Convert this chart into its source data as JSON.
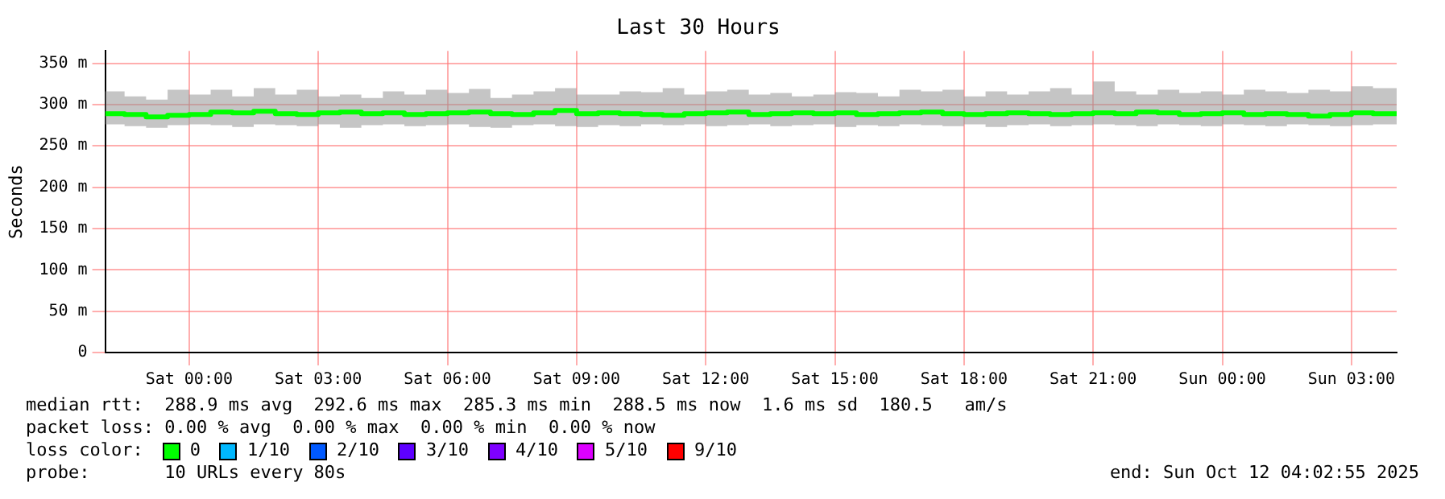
{
  "chart_data": {
    "type": "step",
    "title": "Last 30 Hours",
    "ylabel": "Seconds",
    "legend_title": "loss color:",
    "legend": "bottom",
    "grid": true,
    "xlim": [
      "2025-10-10T22:03",
      "2025-10-12T04:03"
    ],
    "xticks": [
      {
        "value": "2025-10-11T00:00",
        "label": "Sat 00:00"
      },
      {
        "value": "2025-10-11T03:00",
        "label": "Sat 03:00"
      },
      {
        "value": "2025-10-11T06:00",
        "label": "Sat 06:00"
      },
      {
        "value": "2025-10-11T09:00",
        "label": "Sat 09:00"
      },
      {
        "value": "2025-10-11T12:00",
        "label": "Sat 12:00"
      },
      {
        "value": "2025-10-11T15:00",
        "label": "Sat 15:00"
      },
      {
        "value": "2025-10-11T18:00",
        "label": "Sat 18:00"
      },
      {
        "value": "2025-10-11T21:00",
        "label": "Sat 21:00"
      },
      {
        "value": "2025-10-12T00:00",
        "label": "Sun 00:00"
      },
      {
        "value": "2025-10-12T03:00",
        "label": "Sun 03:00"
      }
    ],
    "ylim": [
      0,
      365
    ],
    "yticks": [
      0,
      {
        "value": 50,
        "label": "50 m"
      },
      {
        "value": 100,
        "label": "100 m"
      },
      {
        "value": 150,
        "label": "150 m"
      },
      {
        "value": 200,
        "label": "200 m"
      },
      {
        "value": 250,
        "label": "250 m"
      },
      {
        "value": 300,
        "label": "300 m"
      },
      {
        "value": 350,
        "label": "350 m"
      }
    ],
    "x": [
      "2025-10-10T22:03",
      "2025-10-10T22:30",
      "2025-10-10T23:00",
      "2025-10-10T23:30",
      "2025-10-11T00:00",
      "2025-10-11T00:30",
      "2025-10-11T01:00",
      "2025-10-11T01:30",
      "2025-10-11T02:00",
      "2025-10-11T02:30",
      "2025-10-11T03:00",
      "2025-10-11T03:30",
      "2025-10-11T04:00",
      "2025-10-11T04:30",
      "2025-10-11T05:00",
      "2025-10-11T05:30",
      "2025-10-11T06:00",
      "2025-10-11T06:30",
      "2025-10-11T07:00",
      "2025-10-11T07:30",
      "2025-10-11T08:00",
      "2025-10-11T08:30",
      "2025-10-11T09:00",
      "2025-10-11T09:30",
      "2025-10-11T10:00",
      "2025-10-11T10:30",
      "2025-10-11T11:00",
      "2025-10-11T11:30",
      "2025-10-11T12:00",
      "2025-10-11T12:30",
      "2025-10-11T13:00",
      "2025-10-11T13:30",
      "2025-10-11T14:00",
      "2025-10-11T14:30",
      "2025-10-11T15:00",
      "2025-10-11T15:30",
      "2025-10-11T16:00",
      "2025-10-11T16:30",
      "2025-10-11T17:00",
      "2025-10-11T17:30",
      "2025-10-11T18:00",
      "2025-10-11T18:30",
      "2025-10-11T19:00",
      "2025-10-11T19:30",
      "2025-10-11T20:00",
      "2025-10-11T20:30",
      "2025-10-11T21:00",
      "2025-10-11T21:30",
      "2025-10-11T22:00",
      "2025-10-11T22:30",
      "2025-10-11T23:00",
      "2025-10-11T23:30",
      "2025-10-12T00:00",
      "2025-10-12T00:30",
      "2025-10-12T01:00",
      "2025-10-12T01:30",
      "2025-10-12T02:00",
      "2025-10-12T02:30",
      "2025-10-12T03:00",
      "2025-10-12T03:30",
      "2025-10-12T04:03"
    ],
    "series": [
      {
        "name": "0",
        "color": "#00ff00",
        "values": [
          289,
          288,
          285,
          287,
          288,
          291,
          290,
          292,
          289,
          288,
          290,
          291,
          289,
          290,
          288,
          289,
          290,
          291,
          289,
          288,
          290,
          293,
          289,
          290,
          289,
          288,
          287,
          289,
          290,
          291,
          288,
          289,
          290,
          289,
          290,
          288,
          289,
          290,
          291,
          289,
          288,
          289,
          290,
          289,
          288,
          289,
          290,
          289,
          291,
          290,
          288,
          289,
          290,
          288,
          289,
          288,
          286,
          288,
          290,
          289,
          289
        ],
        "lower": [
          276,
          274,
          272,
          275,
          276,
          275,
          273,
          276,
          275,
          274,
          276,
          272,
          275,
          276,
          274,
          275,
          276,
          273,
          272,
          275,
          276,
          274,
          273,
          275,
          274,
          276,
          275,
          276,
          274,
          275,
          276,
          274,
          275,
          276,
          273,
          275,
          274,
          276,
          275,
          274,
          276,
          273,
          275,
          276,
          274,
          275,
          276,
          275,
          274,
          276,
          275,
          274,
          276,
          275,
          274,
          276,
          275,
          274,
          275,
          276,
          276
        ],
        "upper": [
          316,
          310,
          306,
          318,
          312,
          318,
          310,
          320,
          312,
          318,
          310,
          312,
          308,
          316,
          312,
          318,
          314,
          319,
          308,
          312,
          316,
          320,
          312,
          312,
          316,
          315,
          320,
          312,
          316,
          318,
          312,
          314,
          310,
          312,
          315,
          314,
          310,
          318,
          316,
          318,
          310,
          316,
          312,
          316,
          320,
          312,
          328,
          316,
          312,
          318,
          314,
          316,
          312,
          318,
          316,
          314,
          318,
          316,
          322,
          320,
          320
        ]
      },
      {
        "name": "1/10",
        "color": "#00b8ff",
        "values": [
          null,
          null,
          null,
          null,
          null,
          null,
          null,
          null,
          null,
          null,
          null,
          null,
          null,
          null,
          null,
          null,
          null,
          null,
          null,
          null,
          null,
          null,
          null,
          null,
          null,
          null,
          null,
          null,
          null,
          null,
          null,
          null,
          null,
          null,
          null,
          null,
          null,
          null,
          null,
          null,
          null,
          null,
          null,
          null,
          null,
          null,
          null,
          null,
          null,
          null,
          null,
          null,
          null,
          null,
          null,
          null,
          null,
          null,
          null,
          null,
          null
        ]
      },
      {
        "name": "2/10",
        "color": "#0059ff",
        "values": [
          null,
          null,
          null,
          null,
          null,
          null,
          null,
          null,
          null,
          null,
          null,
          null,
          null,
          null,
          null,
          null,
          null,
          null,
          null,
          null,
          null,
          null,
          null,
          null,
          null,
          null,
          null,
          null,
          null,
          null,
          null,
          null,
          null,
          null,
          null,
          null,
          null,
          null,
          null,
          null,
          null,
          null,
          null,
          null,
          null,
          null,
          null,
          null,
          null,
          null,
          null,
          null,
          null,
          null,
          null,
          null,
          null,
          null,
          null,
          null,
          null
        ]
      },
      {
        "name": "3/10",
        "color": "#5e00ff",
        "values": [
          null,
          null,
          null,
          null,
          null,
          null,
          null,
          null,
          null,
          null,
          null,
          null,
          null,
          null,
          null,
          null,
          null,
          null,
          null,
          null,
          null,
          null,
          null,
          null,
          null,
          null,
          null,
          null,
          null,
          null,
          null,
          null,
          null,
          null,
          null,
          null,
          null,
          null,
          null,
          null,
          null,
          null,
          null,
          null,
          null,
          null,
          null,
          null,
          null,
          null,
          null,
          null,
          null,
          null,
          null,
          null,
          null,
          null,
          null,
          null,
          null
        ]
      },
      {
        "name": "4/10",
        "color": "#7e00ff",
        "values": [
          null,
          null,
          null,
          null,
          null,
          null,
          null,
          null,
          null,
          null,
          null,
          null,
          null,
          null,
          null,
          null,
          null,
          null,
          null,
          null,
          null,
          null,
          null,
          null,
          null,
          null,
          null,
          null,
          null,
          null,
          null,
          null,
          null,
          null,
          null,
          null,
          null,
          null,
          null,
          null,
          null,
          null,
          null,
          null,
          null,
          null,
          null,
          null,
          null,
          null,
          null,
          null,
          null,
          null,
          null,
          null,
          null,
          null,
          null,
          null,
          null
        ]
      },
      {
        "name": "5/10",
        "color": "#dd00ff",
        "values": [
          null,
          null,
          null,
          null,
          null,
          null,
          null,
          null,
          null,
          null,
          null,
          null,
          null,
          null,
          null,
          null,
          null,
          null,
          null,
          null,
          null,
          null,
          null,
          null,
          null,
          null,
          null,
          null,
          null,
          null,
          null,
          null,
          null,
          null,
          null,
          null,
          null,
          null,
          null,
          null,
          null,
          null,
          null,
          null,
          null,
          null,
          null,
          null,
          null,
          null,
          null,
          null,
          null,
          null,
          null,
          null,
          null,
          null,
          null,
          null,
          null
        ]
      },
      {
        "name": "9/10",
        "color": "#ff0000",
        "values": [
          null,
          null,
          null,
          null,
          null,
          null,
          null,
          null,
          null,
          null,
          null,
          null,
          null,
          null,
          null,
          null,
          null,
          null,
          null,
          null,
          null,
          null,
          null,
          null,
          null,
          null,
          null,
          null,
          null,
          null,
          null,
          null,
          null,
          null,
          null,
          null,
          null,
          null,
          null,
          null,
          null,
          null,
          null,
          null,
          null,
          null,
          null,
          null,
          null,
          null,
          null,
          null,
          null,
          null,
          null,
          null,
          null,
          null,
          null,
          null,
          null
        ]
      }
    ],
    "annotations": [
      "median rtt:  288.9 ms avg  292.6 ms max  285.3 ms min  288.5 ms now  1.6 ms sd  180.5   am/s",
      "packet loss: 0.00 % avg  0.00 % max  0.00 % min  0.00 % now",
      "probe:       10 URLs every 80s",
      "end: Sun Oct 12 04:02:55 2025"
    ]
  }
}
